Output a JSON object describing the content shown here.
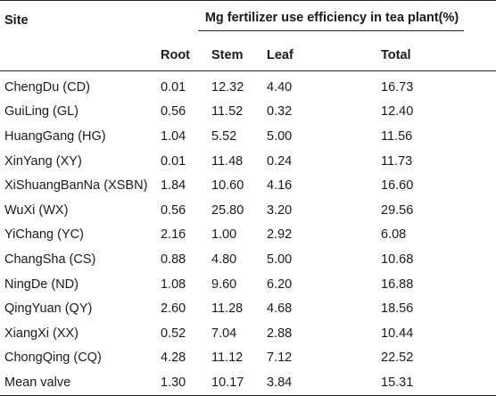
{
  "table": {
    "headers": {
      "site": "Site",
      "group": "Mg fertilizer use efficiency in tea plant(%)",
      "root": "Root",
      "stem": "Stem",
      "leaf": "Leaf",
      "total": "Total"
    },
    "rows": [
      {
        "site": "ChengDu (CD)",
        "root": "0.01",
        "stem": "12.32",
        "leaf": "4.40",
        "total": "16.73"
      },
      {
        "site": "GuiLing (GL)",
        "root": "0.56",
        "stem": "11.52",
        "leaf": "0.32",
        "total": "12.40"
      },
      {
        "site": "HuangGang (HG)",
        "root": "1.04",
        "stem": "5.52",
        "leaf": "5.00",
        "total": "11.56"
      },
      {
        "site": "XinYang (XY)",
        "root": "0.01",
        "stem": "11.48",
        "leaf": "0.24",
        "total": "11.73"
      },
      {
        "site": "XiShuangBanNa (XSBN)",
        "root": "1.84",
        "stem": "10.60",
        "leaf": "4.16",
        "total": "16.60"
      },
      {
        "site": "WuXi (WX)",
        "root": "0.56",
        "stem": "25.80",
        "leaf": "3.20",
        "total": "29.56"
      },
      {
        "site": "YiChang (YC)",
        "root": "2.16",
        "stem": "1.00",
        "leaf": "2.92",
        "total": "6.08"
      },
      {
        "site": "ChangSha (CS)",
        "root": "0.88",
        "stem": "4.80",
        "leaf": "5.00",
        "total": "10.68"
      },
      {
        "site": "NingDe (ND)",
        "root": "1.08",
        "stem": "9.60",
        "leaf": "6.20",
        "total": "16.88"
      },
      {
        "site": "QingYuan (QY)",
        "root": "2.60",
        "stem": "11.28",
        "leaf": "4.68",
        "total": "18.56"
      },
      {
        "site": "XiangXi (XX)",
        "root": "0.52",
        "stem": "7.04",
        "leaf": "2.88",
        "total": "10.44"
      },
      {
        "site": "ChongQing (CQ)",
        "root": "4.28",
        "stem": "11.12",
        "leaf": "7.12",
        "total": "22.52"
      },
      {
        "site": "Mean valve",
        "root": "1.30",
        "stem": "10.17",
        "leaf": "3.84",
        "total": "15.31"
      }
    ]
  }
}
